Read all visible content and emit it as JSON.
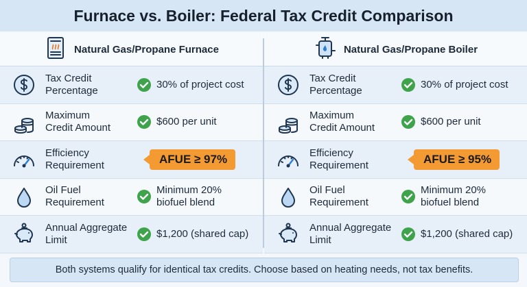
{
  "header": {
    "title": "Furnace vs. Boiler: Federal Tax Credit Comparison"
  },
  "columns": [
    {
      "title": "Natural Gas/Propane Furnace",
      "rows": [
        {
          "label": [
            "Tax Credit",
            "Percentage"
          ],
          "value": [
            "30% of project cost"
          ],
          "highlight": false
        },
        {
          "label": [
            "Maximum",
            "Credit Amount"
          ],
          "value": [
            "$600 per unit"
          ],
          "highlight": false
        },
        {
          "label": [
            "Efficiency",
            "Requirement"
          ],
          "value": [
            "AFUE ≥ 97%"
          ],
          "highlight": true
        },
        {
          "label": [
            "Oil Fuel",
            "Requirement"
          ],
          "value": [
            "Minimum 20%",
            "biofuel blend"
          ],
          "highlight": false
        },
        {
          "label": [
            "Annual Aggregate",
            "Limit"
          ],
          "value": [
            "$1,200 (shared cap)"
          ],
          "highlight": false
        }
      ]
    },
    {
      "title": "Natural Gas/Propane Boiler",
      "rows": [
        {
          "label": [
            "Tax Credit",
            "Percentage"
          ],
          "value": [
            "30% of project cost"
          ],
          "highlight": false
        },
        {
          "label": [
            "Maximum",
            "Credit Amount"
          ],
          "value": [
            "$600 per unit"
          ],
          "highlight": false
        },
        {
          "label": [
            "Efficiency",
            "Requirement"
          ],
          "value": [
            "AFUE ≥ 95%"
          ],
          "highlight": true
        },
        {
          "label": [
            "Oil Fuel",
            "Requirement"
          ],
          "value": [
            "Minimum 20%",
            "biofuel blend"
          ],
          "highlight": false
        },
        {
          "label": [
            "Annual Aggregate",
            "Limit"
          ],
          "value": [
            "$1,200 (shared cap)"
          ],
          "highlight": false
        }
      ]
    }
  ],
  "footer": "Both systems qualify for identical tax credits. Choose based on heating needs, not tax benefits."
}
